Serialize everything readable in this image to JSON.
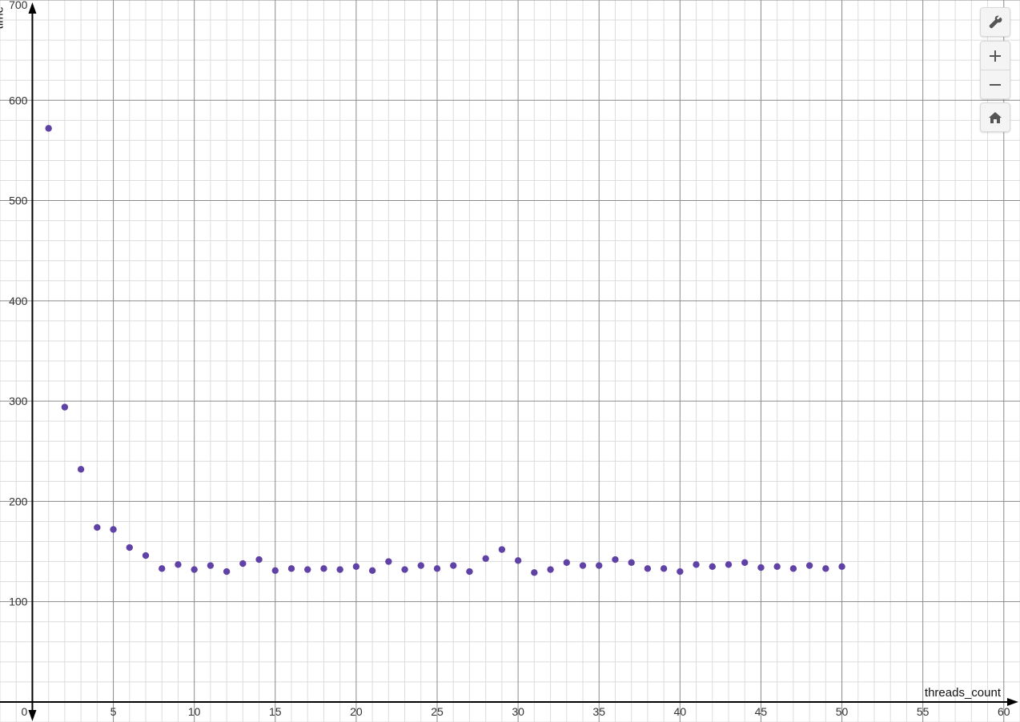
{
  "chart_data": {
    "type": "scatter",
    "xlabel": "threads_count",
    "ylabel": "time",
    "xlim": [
      -2,
      61
    ],
    "ylim": [
      -20,
      700
    ],
    "x_ticks": [
      0,
      5,
      10,
      15,
      20,
      25,
      30,
      35,
      40,
      45,
      50,
      55,
      60
    ],
    "y_ticks": [
      100,
      200,
      300,
      400,
      500,
      600,
      700
    ],
    "grid": true,
    "point_color": "#6042a6",
    "x": [
      1,
      2,
      3,
      4,
      5,
      6,
      7,
      8,
      9,
      10,
      11,
      12,
      13,
      14,
      15,
      16,
      17,
      18,
      19,
      20,
      21,
      22,
      23,
      24,
      25,
      26,
      27,
      28,
      29,
      30,
      31,
      32,
      33,
      34,
      35,
      36,
      37,
      38,
      39,
      40,
      41,
      42,
      43,
      44,
      45,
      46,
      47,
      48,
      49,
      50
    ],
    "y": [
      572,
      294,
      232,
      174,
      172,
      154,
      146,
      133,
      137,
      132,
      136,
      130,
      138,
      142,
      131,
      133,
      132,
      133,
      132,
      135,
      131,
      140,
      132,
      136,
      133,
      136,
      130,
      143,
      152,
      141,
      129,
      132,
      139,
      136,
      136,
      142,
      139,
      133,
      133,
      130,
      137,
      135,
      137,
      139,
      134,
      135,
      133,
      136,
      133,
      135
    ]
  },
  "controls": {
    "settings_icon": "wrench-icon",
    "zoom_in_icon": "plus-icon",
    "zoom_out_icon": "minus-icon",
    "home_icon": "home-icon"
  }
}
